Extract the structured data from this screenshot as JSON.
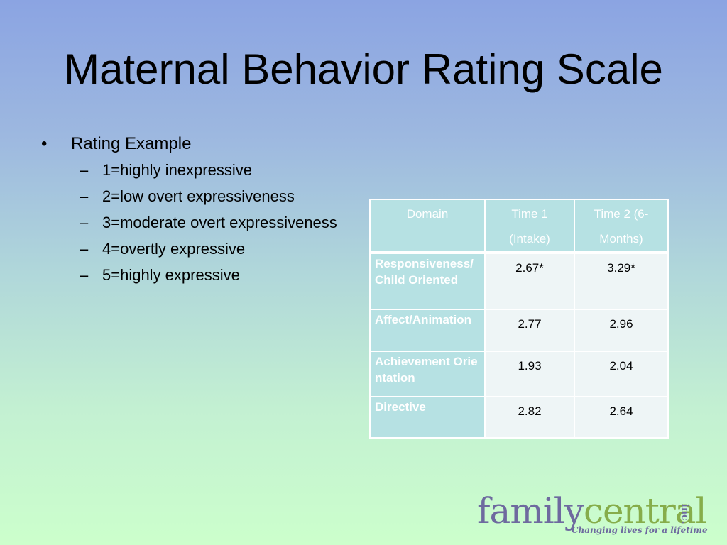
{
  "slide": {
    "title": "Maternal Behavior Rating Scale",
    "bullet": "Rating Example",
    "sub_items": [
      "1=highly inexpressive",
      "2=low overt expressiveness",
      "3=moderate overt expressiveness",
      "4=overtly expressive",
      "5=highly expressive"
    ],
    "bullet_glyph": "•",
    "dash_glyph": "–"
  },
  "table": {
    "headers": [
      "Domain",
      "Time 1 (Intake)",
      "Time 2 (6-Months)"
    ],
    "rows": [
      {
        "domain": "Responsiveness/Child Oriented",
        "time1": "2.67*",
        "time2": "3.29*"
      },
      {
        "domain": "Affect/Animation",
        "time1": "2.77",
        "time2": "2.96"
      },
      {
        "domain": "Achievement Orientation",
        "time1": "1.93",
        "time2": "2.04"
      },
      {
        "domain": "Directive",
        "time1": "2.82",
        "time2": "2.64"
      }
    ]
  },
  "logo": {
    "word1": "family",
    "word2": "central",
    "suffix": "inc.",
    "tagline": "Changing lives for a lifetime",
    "colors": {
      "purple": "#6e6a9f",
      "green": "#86ad4a"
    }
  },
  "colors": {
    "background_top": "#8ba4e2",
    "background_bottom": "#ccffcc",
    "table_header": "#b6e1e3",
    "table_cell": "#eef5f6"
  }
}
